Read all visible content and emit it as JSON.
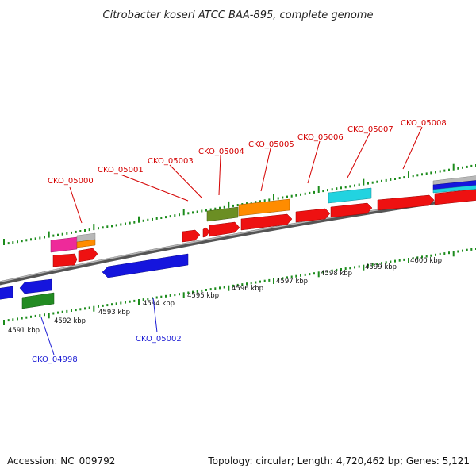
{
  "title": "Citrobacter koseri ATCC BAA-895, complete genome",
  "footer": {
    "accession": "Accession: NC_009792",
    "topology": "Topology: circular; Length: 4,720,462 bp; Genes: 5,121"
  },
  "colors": {
    "forward_cds": "#ee1111",
    "reverse_cds": "#1515dd",
    "olive": "#6b8e23",
    "orange": "#ff8c00",
    "cyan": "#22d3e0",
    "magenta": "#ee2a9a",
    "green": "#228b22",
    "tick": "#1c8c1c",
    "backbone": "#7a7a7a"
  },
  "scale_labels": [
    "4591 kbp",
    "4592 kbp",
    "4593 kbp",
    "4594 kbp",
    "4595 kbp",
    "4596 kbp",
    "4597 kbp",
    "4598 kbp",
    "4599 kbp",
    "4600 kbp"
  ],
  "gene_labels": [
    {
      "text": "CKO_05000",
      "strand": "forward"
    },
    {
      "text": "CKO_05001",
      "strand": "forward"
    },
    {
      "text": "CKO_05003",
      "strand": "forward"
    },
    {
      "text": "CKO_05004",
      "strand": "forward"
    },
    {
      "text": "CKO_05005",
      "strand": "forward"
    },
    {
      "text": "CKO_05006",
      "strand": "forward"
    },
    {
      "text": "CKO_05007",
      "strand": "forward"
    },
    {
      "text": "CKO_05008",
      "strand": "forward"
    },
    {
      "text": "CKO_04998",
      "strand": "reverse"
    },
    {
      "text": "CKO_05002",
      "strand": "reverse"
    }
  ]
}
